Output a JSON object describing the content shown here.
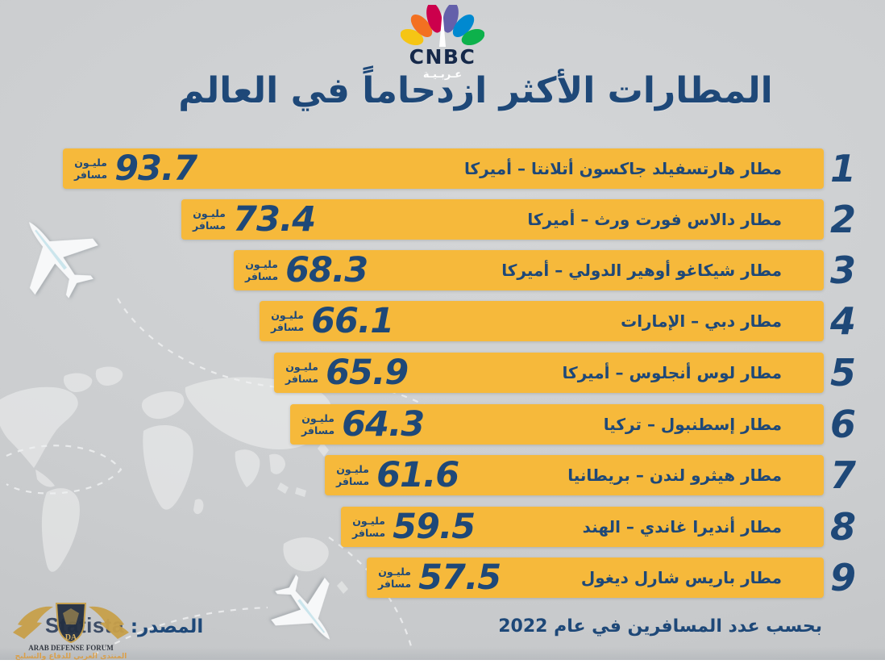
{
  "brand": {
    "name": "CNBC",
    "subname": "عـربـيـة",
    "peacock_colors": [
      "#F5C515",
      "#F37021",
      "#CC004C",
      "#6460AA",
      "#0089D0",
      "#0DB14B"
    ]
  },
  "title": "المطارات الأكثر ازدحاماً في العالم",
  "unit": {
    "line1": "مليـون",
    "line2": "مسافر"
  },
  "rows": [
    {
      "rank": "1",
      "airport": "مطار هارتسفيلد جاكسون أتلانتا – أميركا",
      "value": "93.7"
    },
    {
      "rank": "2",
      "airport": "مطار دالاس فورت ورث – أميركا",
      "value": "73.4"
    },
    {
      "rank": "3",
      "airport": "مطار شيكاغو أوهير الدولي – أميركا",
      "value": "68.3"
    },
    {
      "rank": "4",
      "airport": "مطار دبي – الإمارات",
      "value": "66.1"
    },
    {
      "rank": "5",
      "airport": "مطار لوس أنجلوس – أميركا",
      "value": "65.9"
    },
    {
      "rank": "6",
      "airport": "مطار إسطنبول – تركيا",
      "value": "64.3"
    },
    {
      "rank": "7",
      "airport": "مطار هيثرو لندن – بريطانيا",
      "value": "61.6"
    },
    {
      "rank": "8",
      "airport": "مطار أنديرا غاندي – الهند",
      "value": "59.5"
    },
    {
      "rank": "9",
      "airport": "مطار باريس شارل ديغول",
      "value": "57.5"
    }
  ],
  "footer": {
    "note": "بحسب عدد المسافرين في عام 2022",
    "source_label": "المصدر:",
    "source_name": "Statista"
  },
  "watermark": {
    "monogram": "DA",
    "line1": "ARAB DEFENSE FORUM",
    "line2": "المنتدى العربي للدفاع والتسليح"
  },
  "colors": {
    "bar": "#F6B93B",
    "navy": "#1E4878",
    "background": "#CBCDCF",
    "watermark_gold": "#C8A04A",
    "watermark_orange": "#E8A33D"
  },
  "chart_data": {
    "type": "bar",
    "orientation": "horizontal",
    "title": "المطارات الأكثر ازدحاماً في العالم",
    "subtitle": "بحسب عدد المسافرين في عام 2022",
    "source": "Statista",
    "unit": "مليون مسافر",
    "categories": [
      "مطار هارتسفيلد جاكسون أتلانتا – أميركا",
      "مطار دالاس فورت ورث – أميركا",
      "مطار شيكاغو أوهير الدولي – أميركا",
      "مطار دبي – الإمارات",
      "مطار لوس أنجلوس – أميركا",
      "مطار إسطنبول – تركيا",
      "مطار هيثرو لندن – بريطانيا",
      "مطار أنديرا غاندي – الهند",
      "مطار باريس شارل ديغول"
    ],
    "values": [
      93.7,
      73.4,
      68.3,
      66.1,
      65.9,
      64.3,
      61.6,
      59.5,
      57.5
    ],
    "ranks": [
      1,
      2,
      3,
      4,
      5,
      6,
      7,
      8,
      9
    ],
    "legend": false,
    "grid": false
  }
}
